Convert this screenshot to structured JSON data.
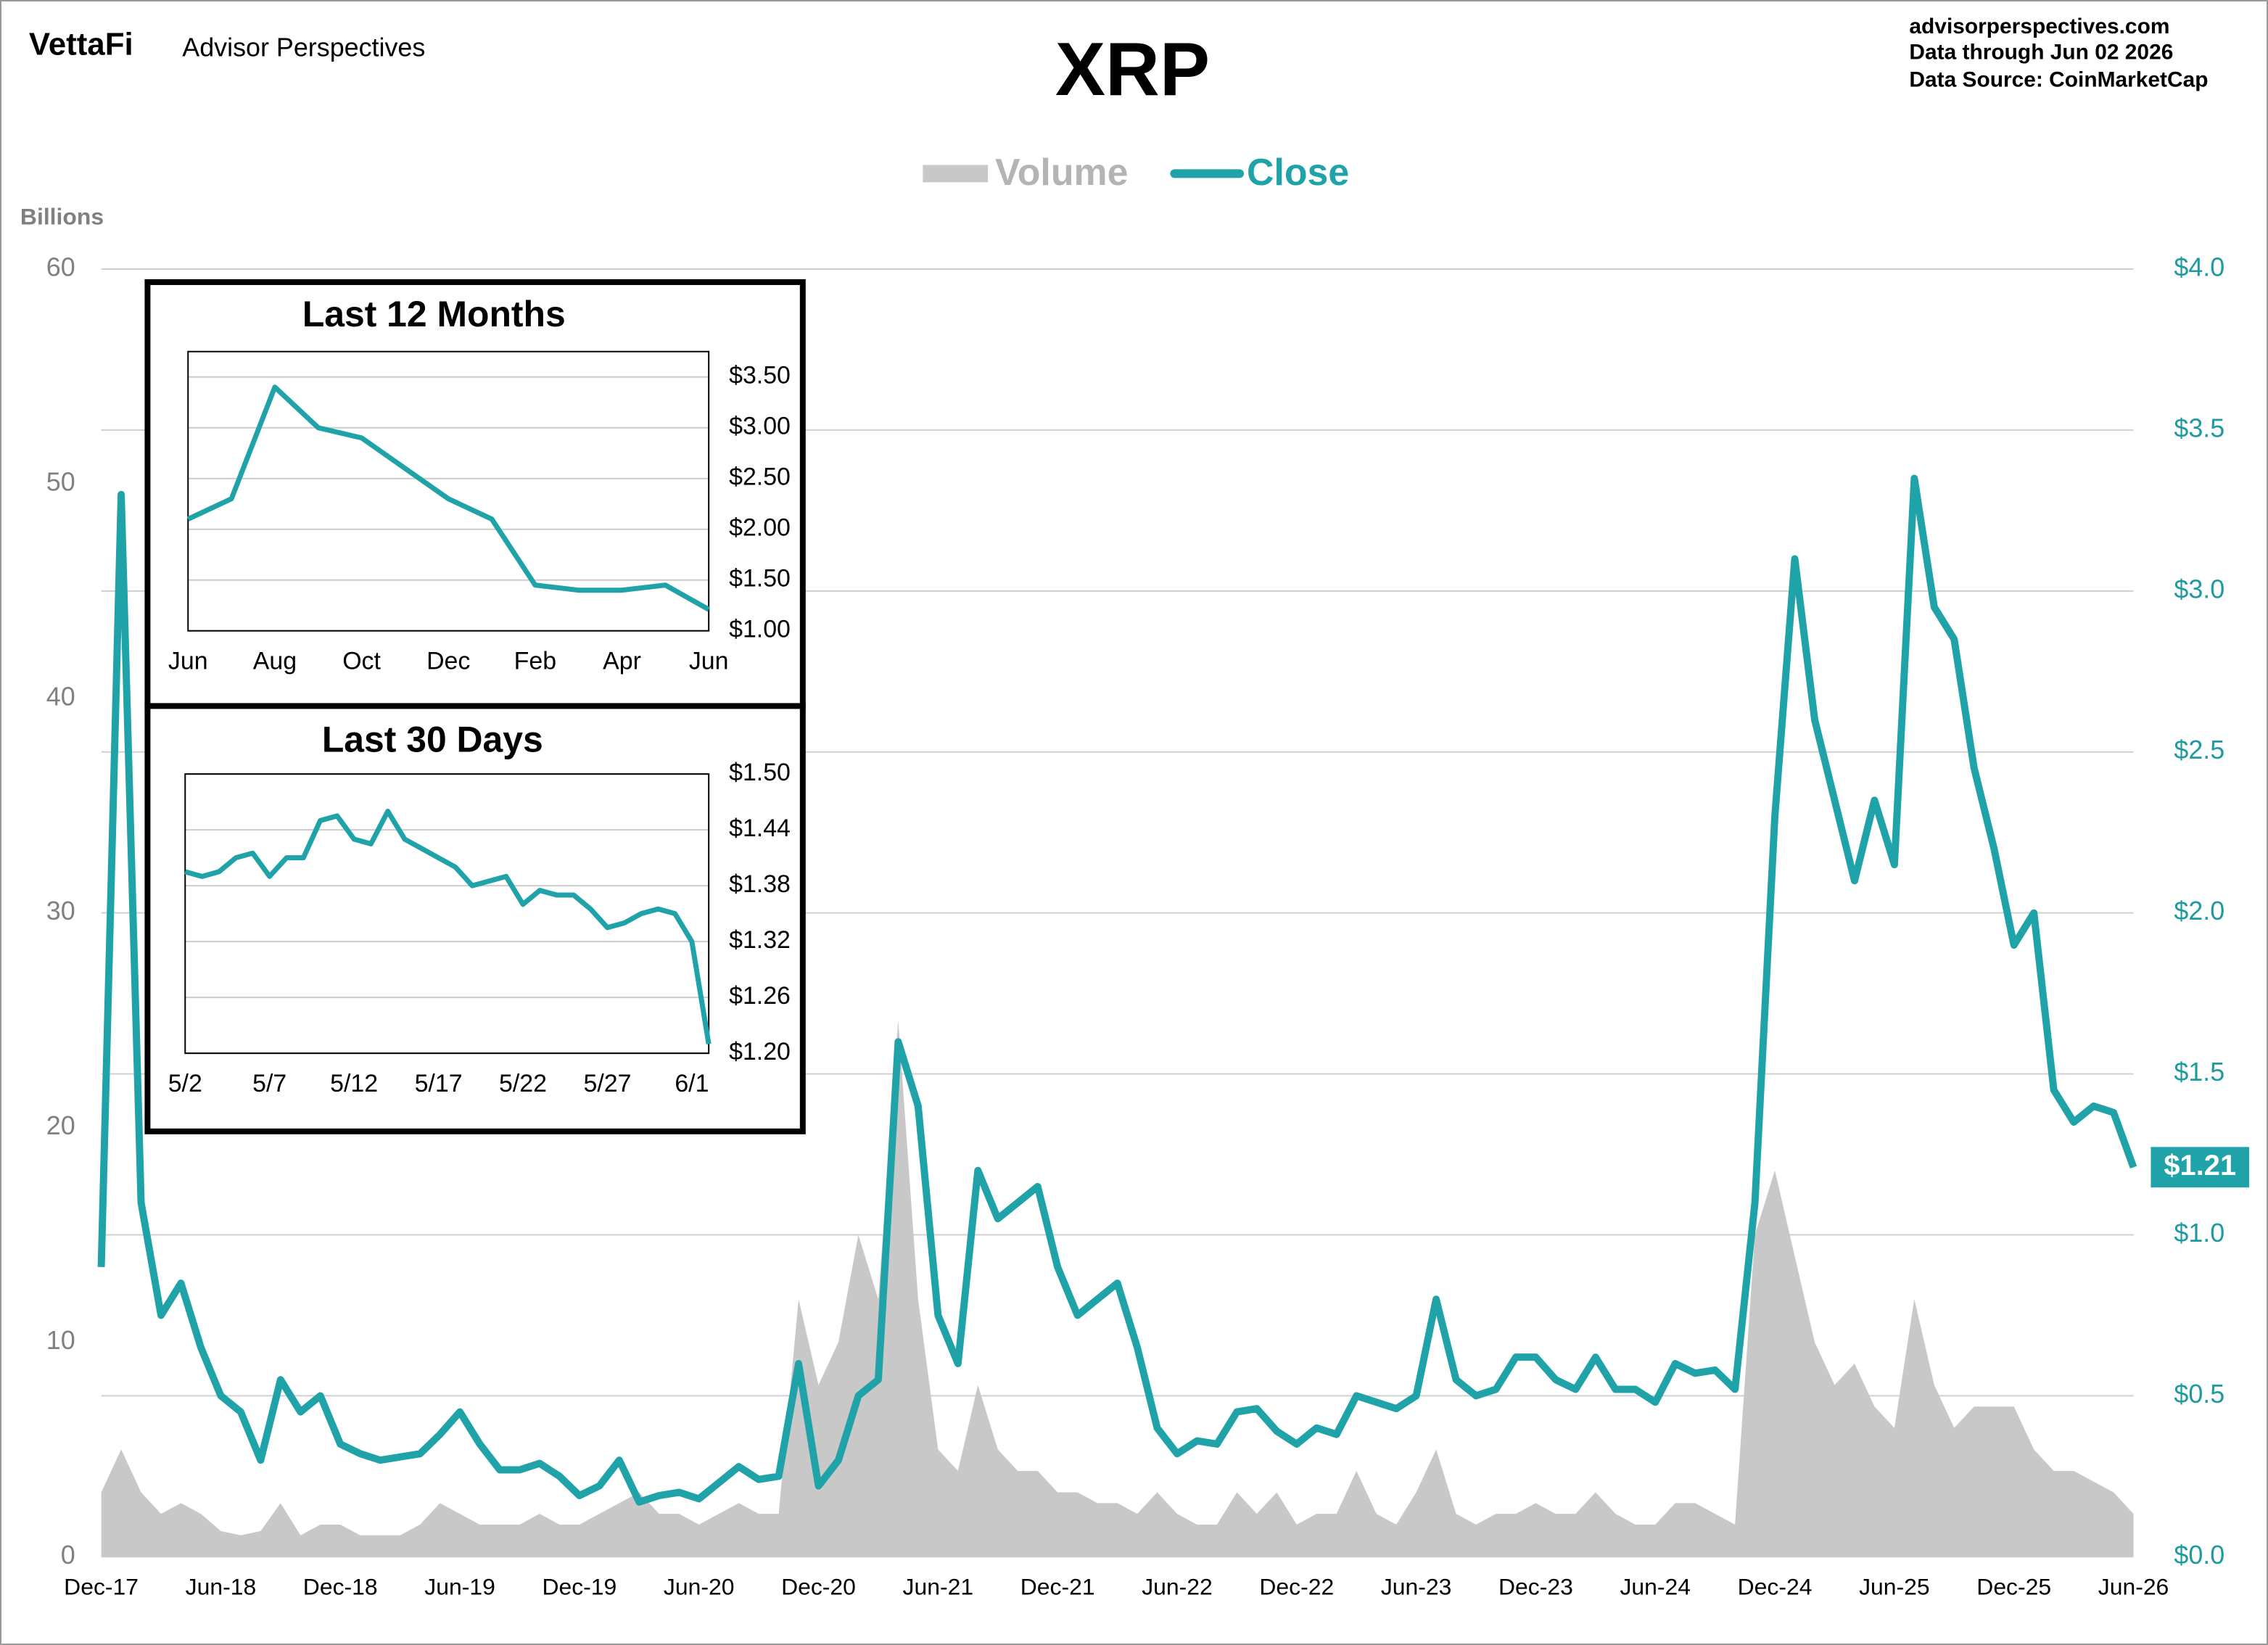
{
  "header": {
    "brand": "VettaFi",
    "publisher": "Advisor Perspectives",
    "site": "advisorperspectives.com",
    "data_through": "Data through  Jun 02 2026",
    "data_source": "Data Source:  CoinMarketCap"
  },
  "chart_data": [
    {
      "type": "line",
      "title": "XRP",
      "y_label": "Billions",
      "legend": "top",
      "grid": "y2",
      "x": [
        "2017-12",
        "2018-01",
        "2018-02",
        "2018-03",
        "2018-04",
        "2018-05",
        "2018-06",
        "2018-07",
        "2018-08",
        "2018-09",
        "2018-10",
        "2018-11",
        "2018-12",
        "2019-01",
        "2019-02",
        "2019-03",
        "2019-04",
        "2019-05",
        "2019-06",
        "2019-07",
        "2019-08",
        "2019-09",
        "2019-10",
        "2019-11",
        "2019-12",
        "2020-01",
        "2020-02",
        "2020-03",
        "2020-04",
        "2020-05",
        "2020-06",
        "2020-07",
        "2020-08",
        "2020-09",
        "2020-10",
        "2020-11",
        "2020-12",
        "2021-01",
        "2021-02",
        "2021-03",
        "2021-04",
        "2021-05",
        "2021-06",
        "2021-07",
        "2021-08",
        "2021-09",
        "2021-10",
        "2021-11",
        "2021-12",
        "2022-01",
        "2022-02",
        "2022-03",
        "2022-04",
        "2022-05",
        "2022-06",
        "2022-07",
        "2022-08",
        "2022-09",
        "2022-10",
        "2022-11",
        "2022-12",
        "2023-01",
        "2023-02",
        "2023-03",
        "2023-04",
        "2023-05",
        "2023-06",
        "2023-07",
        "2023-08",
        "2023-09",
        "2023-10",
        "2023-11",
        "2023-12",
        "2024-01",
        "2024-02",
        "2024-03",
        "2024-04",
        "2024-05",
        "2024-06",
        "2024-07",
        "2024-08",
        "2024-09",
        "2024-10",
        "2024-11",
        "2024-12",
        "2025-01",
        "2025-02",
        "2025-03",
        "2025-04",
        "2025-05",
        "2025-06",
        "2025-07",
        "2025-08",
        "2025-09",
        "2025-10",
        "2025-11",
        "2025-12",
        "2026-01",
        "2026-02",
        "2026-03",
        "2026-04",
        "2026-05",
        "2026-06"
      ],
      "xlim": [
        "2017-12",
        "2026-06"
      ],
      "xticks": [
        {
          "value": "2017-12",
          "label": "Dec-17"
        },
        {
          "value": "2018-06",
          "label": "Jun-18"
        },
        {
          "value": "2018-12",
          "label": "Dec-18"
        },
        {
          "value": "2019-06",
          "label": "Jun-19"
        },
        {
          "value": "2019-12",
          "label": "Dec-19"
        },
        {
          "value": "2020-06",
          "label": "Jun-20"
        },
        {
          "value": "2020-12",
          "label": "Dec-20"
        },
        {
          "value": "2021-06",
          "label": "Jun-21"
        },
        {
          "value": "2021-12",
          "label": "Dec-21"
        },
        {
          "value": "2022-06",
          "label": "Jun-22"
        },
        {
          "value": "2022-12",
          "label": "Dec-22"
        },
        {
          "value": "2023-06",
          "label": "Jun-23"
        },
        {
          "value": "2023-12",
          "label": "Dec-23"
        },
        {
          "value": "2024-06",
          "label": "Jun-24"
        },
        {
          "value": "2024-12",
          "label": "Dec-24"
        },
        {
          "value": "2025-06",
          "label": "Jun-25"
        },
        {
          "value": "2025-12",
          "label": "Dec-25"
        },
        {
          "value": "2026-06",
          "label": "Jun-26"
        }
      ],
      "ylim": [
        0,
        60
      ],
      "yticks": [
        0,
        10,
        20,
        30,
        40,
        50,
        60
      ],
      "y2lim": [
        0,
        4
      ],
      "y2ticks": [
        {
          "value": 0,
          "label": "$0.0"
        },
        {
          "value": 0.5,
          "label": "$0.5"
        },
        {
          "value": 1,
          "label": "$1.0"
        },
        {
          "value": 1.5,
          "label": "$1.5"
        },
        {
          "value": 2,
          "label": "$2.0"
        },
        {
          "value": 2.5,
          "label": "$2.5"
        },
        {
          "value": 3,
          "label": "$3.0"
        },
        {
          "value": 3.5,
          "label": "$3.5"
        },
        {
          "value": 4,
          "label": "$4.0"
        }
      ],
      "series": [
        {
          "name": "Volume",
          "type": "area",
          "color": "#c8c8c8",
          "values": [
            3,
            5,
            3,
            2,
            2.5,
            2,
            1.2,
            1,
            1.2,
            2.5,
            1,
            1.5,
            1.5,
            1,
            1,
            1,
            1.5,
            2.5,
            2,
            1.5,
            1.5,
            1.5,
            2,
            1.5,
            1.5,
            2,
            2.5,
            3,
            2,
            2,
            1.5,
            2,
            2.5,
            2,
            2,
            12,
            8,
            10,
            15,
            12,
            25,
            12,
            5,
            4,
            8,
            5,
            4,
            4,
            3,
            3,
            2.5,
            2.5,
            2,
            3,
            2,
            1.5,
            1.5,
            3,
            2,
            3,
            1.5,
            2,
            2,
            4,
            2,
            1.5,
            3,
            5,
            2,
            1.5,
            2,
            2,
            2.5,
            2,
            2,
            3,
            2,
            1.5,
            1.5,
            2.5,
            2.5,
            2,
            1.5,
            15,
            18,
            14,
            10,
            8,
            9,
            7,
            6,
            12,
            8,
            6,
            7,
            7,
            7,
            5,
            4,
            4,
            3.5,
            3,
            2
          ]
        },
        {
          "name": "Close",
          "type": "line",
          "axis": "y2",
          "color": "#1fa3a8",
          "end_label": "$1.21",
          "values": [
            0.9,
            3.3,
            1.1,
            0.75,
            0.85,
            0.65,
            0.5,
            0.45,
            0.3,
            0.55,
            0.45,
            0.5,
            0.35,
            0.32,
            0.3,
            0.31,
            0.32,
            0.38,
            0.45,
            0.35,
            0.27,
            0.27,
            0.29,
            0.25,
            0.19,
            0.22,
            0.3,
            0.17,
            0.19,
            0.2,
            0.18,
            0.23,
            0.28,
            0.24,
            0.25,
            0.6,
            0.22,
            0.3,
            0.5,
            0.55,
            1.6,
            1.4,
            0.75,
            0.6,
            1.2,
            1.05,
            1.1,
            1.15,
            0.9,
            0.75,
            0.8,
            0.85,
            0.65,
            0.4,
            0.32,
            0.36,
            0.35,
            0.45,
            0.46,
            0.39,
            0.35,
            0.4,
            0.38,
            0.5,
            0.48,
            0.46,
            0.5,
            0.8,
            0.55,
            0.5,
            0.52,
            0.62,
            0.62,
            0.55,
            0.52,
            0.62,
            0.52,
            0.52,
            0.48,
            0.6,
            0.57,
            0.58,
            0.52,
            1.1,
            2.3,
            3.1,
            2.6,
            2.35,
            2.1,
            2.35,
            2.15,
            3.35,
            2.95,
            2.85,
            2.45,
            2.2,
            1.9,
            2,
            1.45,
            1.35,
            1.4,
            1.38,
            1.21
          ]
        }
      ]
    },
    {
      "type": "line",
      "title": "Last 12 Months",
      "color": "#1fa3a8",
      "grid": true,
      "categories": [
        "Jun",
        null,
        "Aug",
        null,
        "Oct",
        null,
        "Dec",
        null,
        "Feb",
        null,
        "Apr",
        null,
        "Jun"
      ],
      "values": [
        2.1,
        2.3,
        3.4,
        3.0,
        2.9,
        2.6,
        2.3,
        2.1,
        1.45,
        1.4,
        1.4,
        1.45,
        1.21
      ],
      "ylim": [
        1,
        3.75
      ],
      "yticks": [
        {
          "value": 1,
          "label": "$1.00"
        },
        {
          "value": 1.5,
          "label": "$1.50"
        },
        {
          "value": 2,
          "label": "$2.00"
        },
        {
          "value": 2.5,
          "label": "$2.50"
        },
        {
          "value": 3,
          "label": "$3.00"
        },
        {
          "value": 3.5,
          "label": "$3.50"
        }
      ]
    },
    {
      "type": "line",
      "title": "Last 30 Days",
      "color": "#1fa3a8",
      "grid": true,
      "categories": [
        "5/2",
        null,
        null,
        null,
        null,
        "5/7",
        null,
        null,
        null,
        null,
        "5/12",
        null,
        null,
        null,
        null,
        "5/17",
        null,
        null,
        null,
        null,
        "5/22",
        null,
        null,
        null,
        null,
        "5/27",
        null,
        null,
        null,
        null,
        "6/1",
        null
      ],
      "values": [
        1.395,
        1.39,
        1.395,
        1.41,
        1.415,
        1.39,
        1.41,
        1.41,
        1.45,
        1.455,
        1.43,
        1.425,
        1.46,
        1.43,
        1.42,
        1.41,
        1.4,
        1.38,
        1.385,
        1.39,
        1.36,
        1.375,
        1.37,
        1.37,
        1.355,
        1.335,
        1.34,
        1.35,
        1.355,
        1.35,
        1.32,
        1.21
      ],
      "ylim": [
        1.2,
        1.5
      ],
      "yticks": [
        {
          "value": 1.2,
          "label": "$1.20"
        },
        {
          "value": 1.26,
          "label": "$1.26"
        },
        {
          "value": 1.32,
          "label": "$1.32"
        },
        {
          "value": 1.38,
          "label": "$1.38"
        },
        {
          "value": 1.44,
          "label": "$1.44"
        },
        {
          "value": 1.5,
          "label": "$1.50"
        }
      ]
    }
  ]
}
